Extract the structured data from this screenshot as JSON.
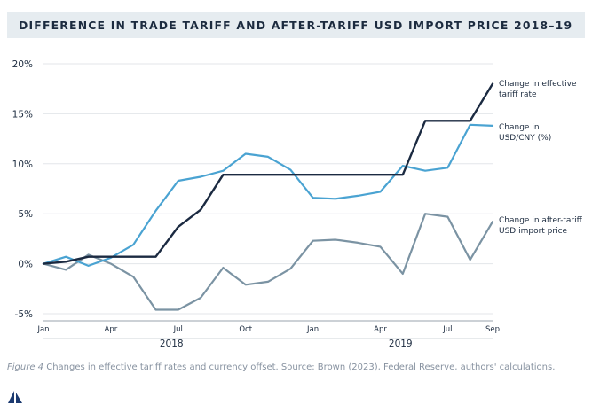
{
  "title": "DIFFERENCE IN TRADE TARIFF AND AFTER-TARIFF USD IMPORT PRICE 2018–19",
  "caption": {
    "figure_label": "Figure 4",
    "text": " Changes in effective tariff rates and currency offset. Source: Brown (2023), Federal Reserve, authors' calculations."
  },
  "colors": {
    "tariff": "#1b2a41",
    "usd_cny": "#4aa3d2",
    "import_price": "#7b93a3",
    "grid": "#e3e6ea",
    "axis": "#9aa3ad",
    "text": "#1c2b3f"
  },
  "chart_data": {
    "type": "line",
    "title": "DIFFERENCE IN TRADE TARIFF AND AFTER-TARIFF USD IMPORT PRICE 2018–19",
    "x_tick_labels": [
      "Jan",
      "Apr",
      "Jul",
      "Oct",
      "Jan",
      "Apr",
      "Jul",
      "Sep"
    ],
    "x_tick_months": [
      0,
      3,
      6,
      9,
      12,
      15,
      18,
      20
    ],
    "x_group_labels": [
      {
        "label": "2018",
        "month": 5.7
      },
      {
        "label": "2019",
        "month": 15.9
      }
    ],
    "y_ticks": [
      "20%",
      "15%",
      "10%",
      "5%",
      "0%",
      "-5%"
    ],
    "y_tick_values": [
      20,
      15,
      10,
      5,
      0,
      -5
    ],
    "ylim": [
      -5,
      20
    ],
    "xlim": [
      0,
      20
    ],
    "grid": true,
    "series": [
      {
        "name": "Change in effective tariff rate",
        "label_lines": [
          "Change in effective",
          "tariff rate"
        ],
        "x": [
          0,
          1,
          2,
          3,
          4,
          5,
          6,
          7,
          8,
          9,
          10,
          11,
          12,
          13,
          14,
          15,
          16,
          17,
          18,
          19,
          20
        ],
        "values": [
          0,
          0.2,
          0.7,
          0.7,
          0.7,
          0.7,
          3.7,
          5.4,
          8.9,
          8.9,
          8.9,
          8.9,
          8.9,
          8.9,
          8.9,
          8.9,
          8.9,
          14.3,
          14.3,
          14.3,
          18.0
        ]
      },
      {
        "name": "Change in USD/CNY (%)",
        "label_lines": [
          "Change in",
          "USD/CNY (%)"
        ],
        "x": [
          0,
          1,
          2,
          3,
          4,
          5,
          6,
          7,
          8,
          9,
          10,
          11,
          12,
          13,
          14,
          15,
          16,
          17,
          18,
          19,
          20
        ],
        "values": [
          0,
          0.7,
          -0.2,
          0.6,
          1.9,
          5.3,
          8.3,
          8.7,
          9.3,
          11.0,
          10.7,
          9.4,
          6.6,
          6.5,
          6.8,
          7.2,
          9.8,
          9.3,
          9.6,
          13.9,
          13.8
        ]
      },
      {
        "name": "Change in after-tariff USD import price",
        "label_lines": [
          "Change in after-tariff",
          "USD import price"
        ],
        "x": [
          0,
          1,
          2,
          3,
          4,
          5,
          6,
          7,
          8,
          9,
          10,
          11,
          12,
          13,
          14,
          15,
          16,
          17,
          18,
          19,
          20
        ],
        "values": [
          0,
          -0.6,
          0.9,
          0.0,
          -1.3,
          -4.6,
          -4.6,
          -3.4,
          -0.4,
          -2.1,
          -1.8,
          -0.5,
          2.3,
          2.4,
          2.1,
          1.7,
          -1.0,
          5.0,
          4.7,
          0.4,
          4.2
        ]
      }
    ]
  }
}
